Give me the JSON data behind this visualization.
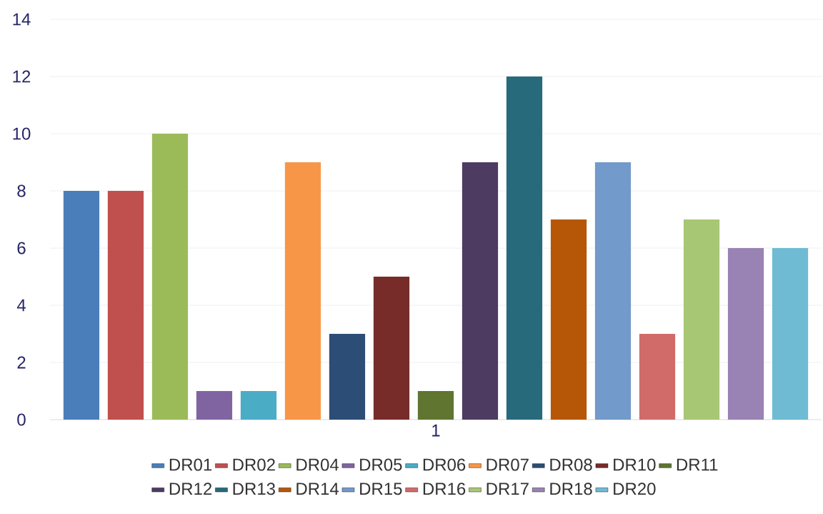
{
  "chart_data": {
    "type": "bar",
    "categories": [
      "1"
    ],
    "series": [
      {
        "name": "DR01",
        "color": "#4a7ebb",
        "values": [
          8
        ]
      },
      {
        "name": "DR02",
        "color": "#c0504d",
        "values": [
          8
        ]
      },
      {
        "name": "DR04",
        "color": "#9bbb59",
        "values": [
          10
        ]
      },
      {
        "name": "DR05",
        "color": "#8064a2",
        "values": [
          1
        ]
      },
      {
        "name": "DR06",
        "color": "#4bacc6",
        "values": [
          1
        ]
      },
      {
        "name": "DR07",
        "color": "#f79646",
        "values": [
          9
        ]
      },
      {
        "name": "DR08",
        "color": "#2c4d75",
        "values": [
          3
        ]
      },
      {
        "name": "DR10",
        "color": "#772c2a",
        "values": [
          5
        ]
      },
      {
        "name": "DR11",
        "color": "#5f7530",
        "values": [
          1
        ]
      },
      {
        "name": "DR12",
        "color": "#4d3b62",
        "values": [
          9
        ]
      },
      {
        "name": "DR13",
        "color": "#276a7c",
        "values": [
          12
        ]
      },
      {
        "name": "DR14",
        "color": "#b65708",
        "values": [
          7
        ]
      },
      {
        "name": "DR15",
        "color": "#729aca",
        "values": [
          9
        ]
      },
      {
        "name": "DR16",
        "color": "#d16b69",
        "values": [
          3
        ]
      },
      {
        "name": "DR17",
        "color": "#a8c774",
        "values": [
          7
        ]
      },
      {
        "name": "DR18",
        "color": "#9982b4",
        "values": [
          6
        ]
      },
      {
        "name": "DR20",
        "color": "#6fbbd3",
        "values": [
          6
        ]
      }
    ],
    "ylim": [
      0,
      14
    ],
    "yticks": [
      0,
      2,
      4,
      6,
      8,
      10,
      12,
      14
    ],
    "grid": "y",
    "legend": "bottom"
  }
}
